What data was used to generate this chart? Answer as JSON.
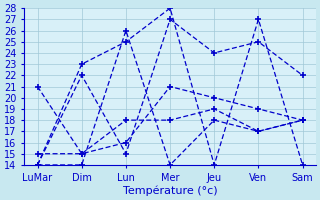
{
  "title": "Température (°c)",
  "background_color": "#c8e8f0",
  "plot_bg_color": "#d8f0f8",
  "line_color": "#0000cc",
  "grid_color": "#a0c8d8",
  "ylim": [
    14,
    28
  ],
  "yticks": [
    14,
    15,
    16,
    17,
    18,
    19,
    20,
    21,
    22,
    23,
    24,
    25,
    26,
    27,
    28
  ],
  "x_labels": [
    "LuMar",
    "Dim",
    "Lun",
    "Mer",
    "Jeu",
    "Ven",
    "Sam"
  ],
  "x_positions": [
    0,
    1,
    2,
    3,
    4,
    5,
    6
  ],
  "series": [
    [
      21,
      15,
      16,
      21,
      20,
      19,
      18
    ],
    [
      14,
      14,
      26,
      14,
      18,
      17,
      18
    ],
    [
      14,
      23,
      25,
      28,
      14,
      27,
      14
    ],
    [
      14,
      22,
      15,
      27,
      24,
      25,
      22
    ],
    [
      15,
      15,
      18,
      18,
      19,
      17,
      18
    ]
  ]
}
